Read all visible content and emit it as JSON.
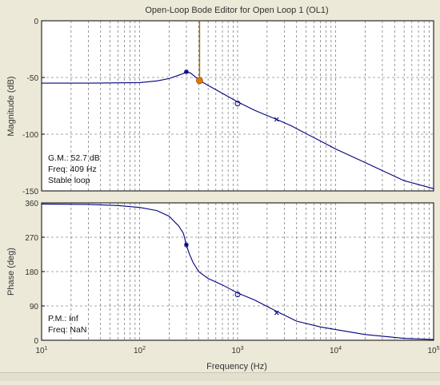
{
  "chart_data": [
    {
      "type": "line",
      "panel": "magnitude",
      "title": "Open-Loop Bode Editor for Open Loop 1 (OL1)",
      "ylabel": "Magnitude (dB)",
      "x_scale": "log",
      "xlim": [
        10,
        100000
      ],
      "ylim": [
        -150,
        0
      ],
      "y_ticks": [
        0,
        -50,
        -100,
        -150
      ],
      "grid": true,
      "series": [
        {
          "color": "#000080",
          "x": [
            10,
            30,
            100,
            150,
            200,
            250,
            280,
            300,
            330,
            360,
            409,
            500,
            700,
            1000,
            1500,
            2000,
            2500,
            3500,
            5000,
            7000,
            10000,
            20000,
            50000,
            100000
          ],
          "y": [
            -55,
            -55,
            -54.5,
            -53,
            -51,
            -48,
            -46.5,
            -45,
            -46,
            -48.5,
            -52.7,
            -57,
            -64,
            -71.5,
            -79,
            -83.5,
            -87,
            -92.5,
            -99.5,
            -106,
            -113,
            -125,
            -141,
            -148
          ]
        }
      ],
      "markers": [
        {
          "kind": "star",
          "x": 300,
          "y": -45
        },
        {
          "kind": "circle",
          "x": 1000,
          "y": -73
        },
        {
          "kind": "cross",
          "x": 2500,
          "y": -87
        },
        {
          "kind": "gain-point",
          "x": 409,
          "y": -52.7,
          "color": "#e07800"
        }
      ],
      "vline": {
        "x": 409,
        "color": "#a07818"
      },
      "annotations": [
        "G.M.: 52.7 dB",
        "Freq: 409 Hz",
        "Stable loop"
      ]
    },
    {
      "type": "line",
      "panel": "phase",
      "ylabel": "Phase (deg)",
      "xlabel": "Frequency (Hz)",
      "x_scale": "log",
      "xlim": [
        10,
        100000
      ],
      "ylim": [
        0,
        360
      ],
      "y_ticks": [
        0,
        90,
        180,
        270,
        360
      ],
      "grid": true,
      "series": [
        {
          "color": "#000080",
          "x": [
            10,
            30,
            60,
            100,
            150,
            200,
            250,
            280,
            300,
            320,
            350,
            400,
            500,
            700,
            1000,
            1500,
            2500,
            4000,
            7000,
            10000,
            20000,
            50000,
            100000
          ],
          "y": [
            357,
            356,
            353,
            348,
            340,
            325,
            300,
            280,
            250,
            228,
            205,
            180,
            162,
            145,
            124,
            105,
            76,
            50,
            35,
            28,
            15,
            5,
            2
          ]
        }
      ],
      "markers": [
        {
          "kind": "star",
          "x": 300,
          "y": 250
        },
        {
          "kind": "circle",
          "x": 1000,
          "y": 120
        },
        {
          "kind": "cross",
          "x": 2500,
          "y": 72
        }
      ],
      "annotations": [
        "P.M.: Inf",
        "Freq: NaN"
      ]
    }
  ]
}
